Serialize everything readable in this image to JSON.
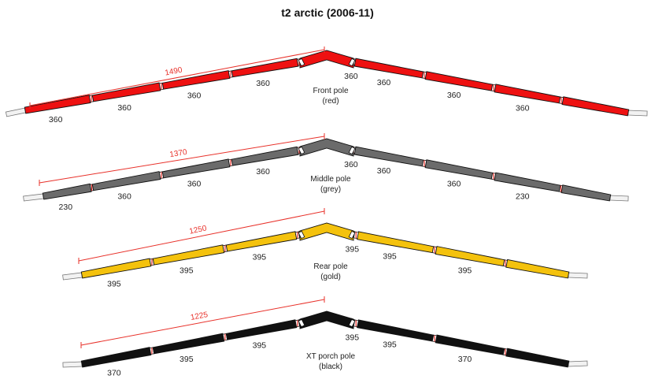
{
  "title": "t2 arctic (2006-11)",
  "colors": {
    "dimension": "#e8312a",
    "outline": "#111111",
    "joint": "#ffffff"
  },
  "poles": [
    {
      "name": "Front pole",
      "color_name": "(red)",
      "fill": "#ee1111",
      "span": "1490",
      "left_sections": [
        "360",
        "360",
        "360",
        "360"
      ],
      "right_sections": [
        "360",
        "360",
        "360",
        "360"
      ]
    },
    {
      "name": "Middle pole",
      "color_name": "(grey)",
      "fill": "#6b6b6b",
      "span": "1370",
      "left_sections": [
        "230",
        "360",
        "360",
        "360"
      ],
      "right_sections": [
        "360",
        "360",
        "360",
        "230"
      ]
    },
    {
      "name": "Rear pole",
      "color_name": "(gold)",
      "fill": "#f4c20d",
      "span": "1250",
      "left_sections": [
        "395",
        "395",
        "395"
      ],
      "right_sections": [
        "395",
        "395",
        "395"
      ]
    },
    {
      "name": "XT porch pole",
      "color_name": "(black)",
      "fill": "#111111",
      "span": "1225",
      "left_sections": [
        "370",
        "395",
        "395"
      ],
      "right_sections": [
        "395",
        "395",
        "370"
      ]
    }
  ]
}
